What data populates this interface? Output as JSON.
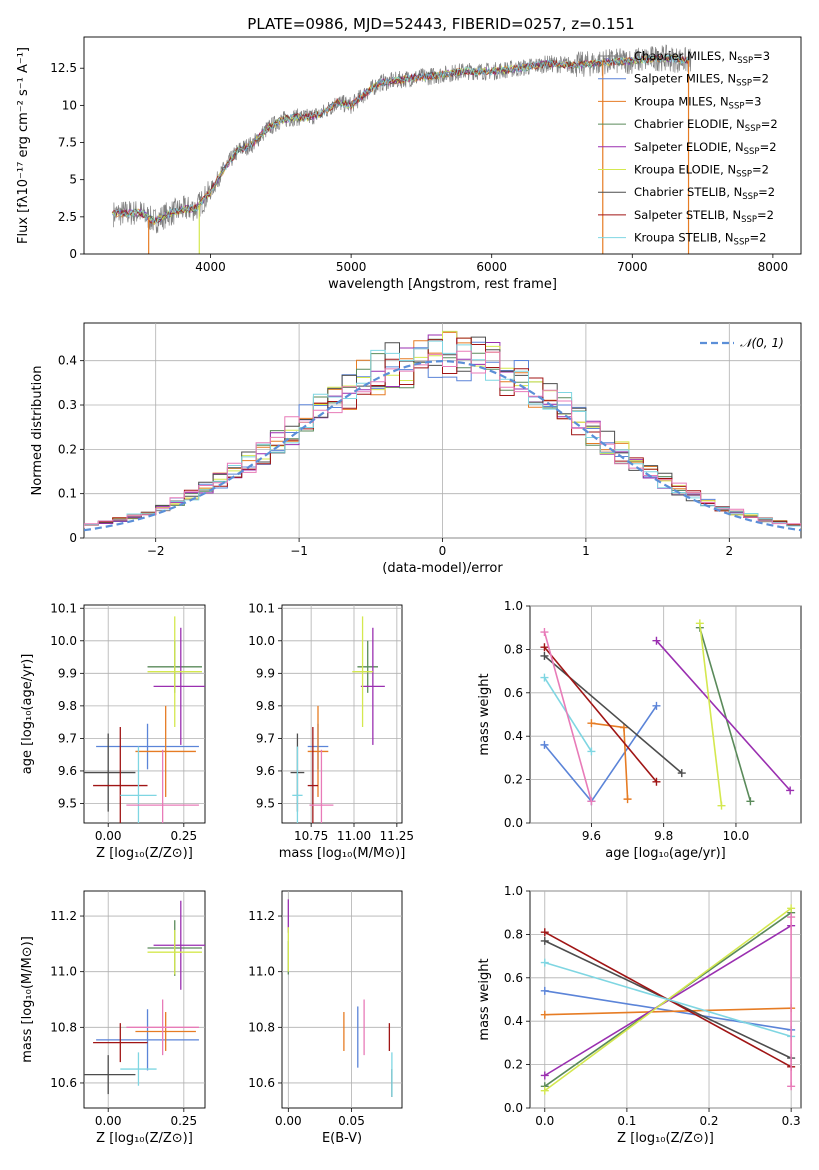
{
  "figure": {
    "title": "PLATE=0986, MJD=52443, FIBERID=0257, z=0.151"
  },
  "chart_data": [
    {
      "type": "line",
      "id": "spectrum",
      "title": "PLATE=0986, MJD=52443, FIBERID=0257, z=0.151",
      "xlabel": "wavelength [Angstrom, rest frame]",
      "ylabel": "Flux [fλ10⁻¹⁷ erg cm⁻² s⁻¹ A⁻¹]",
      "xlim": [
        3100,
        8200
      ],
      "ylim": [
        0,
        14.6
      ],
      "xticks": [
        4000,
        5000,
        6000,
        7000,
        8000
      ],
      "yticks": [
        0.0,
        2.5,
        5.0,
        7.5,
        10.0,
        12.5
      ],
      "grid": false,
      "legend_position": "top-right",
      "series": [
        {
          "name": "Chabrier MILES, N_SSP=3",
          "color": "#808080"
        },
        {
          "name": "Salpeter MILES, N_SSP=2",
          "color": "#5b84d8"
        },
        {
          "name": "Kroupa MILES, N_SSP=3",
          "color": "#e67c24"
        },
        {
          "name": "Chabrier ELODIE, N_SSP=2",
          "color": "#5a8a5a"
        },
        {
          "name": "Salpeter ELODIE, N_SSP=2",
          "color": "#9a2fb0"
        },
        {
          "name": "Kroupa ELODIE, N_SSP=2",
          "color": "#d4e84f"
        },
        {
          "name": "Chabrier STELIB, N_SSP=2",
          "color": "#4d4d4d"
        },
        {
          "name": "Salpeter STELIB, N_SSP=2",
          "color": "#a01515"
        },
        {
          "name": "Kroupa STELIB, N_SSP=2",
          "color": "#7fd6e2"
        }
      ],
      "continuum": {
        "x": [
          3300,
          3500,
          3600,
          3700,
          3800,
          3900,
          4000,
          4100,
          4200,
          4300,
          4400,
          4500,
          4600,
          4700,
          4800,
          4900,
          5000,
          5100,
          5200,
          5400,
          5600,
          5800,
          6000,
          6200,
          6400,
          6600,
          6800,
          7000,
          7200,
          7400
        ],
        "y": [
          2.7,
          2.8,
          2.2,
          2.7,
          3.0,
          3.1,
          4.2,
          5.8,
          7.0,
          7.4,
          8.4,
          9.0,
          9.2,
          9.2,
          9.5,
          10.2,
          10.0,
          10.8,
          11.5,
          11.8,
          12.0,
          12.3,
          12.3,
          12.5,
          12.8,
          12.7,
          12.9,
          13.0,
          13.2,
          13.0
        ]
      }
    },
    {
      "type": "line",
      "id": "residuals",
      "xlabel": "(data-model)/error",
      "ylabel": "Normed distribution",
      "xlim": [
        -2.5,
        2.5
      ],
      "ylim": [
        0,
        0.485
      ],
      "xticks": [
        -2,
        -1,
        0,
        1,
        2
      ],
      "yticks": [
        0.0,
        0.1,
        0.2,
        0.3,
        0.4
      ],
      "grid": true,
      "legend_position": "top-right",
      "legend": "𝒩(0, 1)",
      "gaussian": {
        "mean": 0,
        "sigma": 1
      },
      "bin_width": 0.1,
      "hist_colors": [
        "#5b84d8",
        "#e67c24",
        "#5a8a5a",
        "#9a2fb0",
        "#d4e84f",
        "#4d4d4d",
        "#a01515",
        "#7fd6e2",
        "#e87bb8"
      ]
    },
    {
      "type": "scatter",
      "id": "age-vs-Z",
      "xlabel": "Z [log₁₀(Z/Z⊙)]",
      "ylabel": "age  [log₁₀(age/yr)]",
      "xlim": [
        -0.08,
        0.32
      ],
      "ylim": [
        9.44,
        10.11
      ],
      "xticks": [
        "0.00",
        "0.25"
      ],
      "yticks": [
        "9.5",
        "9.6",
        "9.7",
        "9.8",
        "9.9",
        "10.0",
        "10.1"
      ],
      "grid": true,
      "errorbars": [
        {
          "color": "#5b84d8",
          "x": 0.13,
          "xerr": 0.17,
          "y": 9.675,
          "yerr": 0.07
        },
        {
          "color": "#e67c24",
          "x": 0.19,
          "xerr": 0.1,
          "y": 9.66,
          "yerr": 0.14
        },
        {
          "color": "#5a8a5a",
          "x": 0.22,
          "xerr": 0.09,
          "y": 9.92,
          "yerr": 0.08
        },
        {
          "color": "#9a2fb0",
          "x": 0.24,
          "xerr": 0.09,
          "y": 9.86,
          "yerr": 0.18
        },
        {
          "color": "#d4e84f",
          "x": 0.22,
          "xerr": 0.09,
          "y": 9.905,
          "yerr": 0.17
        },
        {
          "color": "#4d4d4d",
          "x": 0.0,
          "xerr": 0.09,
          "y": 9.595,
          "yerr": 0.12
        },
        {
          "color": "#a01515",
          "x": 0.04,
          "xerr": 0.09,
          "y": 9.555,
          "yerr": 0.18
        },
        {
          "color": "#7fd6e2",
          "x": 0.1,
          "xerr": 0.06,
          "y": 9.525,
          "yerr": 0.15
        },
        {
          "color": "#e87bb8",
          "x": 0.18,
          "xerr": 0.12,
          "y": 9.495,
          "yerr": 0.17
        }
      ]
    },
    {
      "type": "scatter",
      "id": "age-vs-mass",
      "xlabel": "mass [log₁₀(M/M⊙)]",
      "ylabel": "",
      "xlim": [
        10.58,
        11.28
      ],
      "ylim": [
        9.44,
        10.11
      ],
      "xticks": [
        "10.75",
        "11.00",
        "11.25"
      ],
      "yticks": [
        "9.5",
        "9.6",
        "9.7",
        "9.8",
        "9.9",
        "10.0",
        "10.1"
      ],
      "grid": true,
      "errorbars": [
        {
          "color": "#5b84d8",
          "x": 10.79,
          "xerr": 0.06,
          "y": 9.675,
          "yerr": 0.07
        },
        {
          "color": "#e67c24",
          "x": 10.79,
          "xerr": 0.06,
          "y": 9.66,
          "yerr": 0.14
        },
        {
          "color": "#5a8a5a",
          "x": 11.08,
          "xerr": 0.06,
          "y": 9.92,
          "yerr": 0.08
        },
        {
          "color": "#9a2fb0",
          "x": 11.11,
          "xerr": 0.07,
          "y": 9.86,
          "yerr": 0.18
        },
        {
          "color": "#d4e84f",
          "x": 11.05,
          "xerr": 0.06,
          "y": 9.905,
          "yerr": 0.17
        },
        {
          "color": "#4d4d4d",
          "x": 10.67,
          "xerr": 0.04,
          "y": 9.595,
          "yerr": 0.12
        },
        {
          "color": "#a01515",
          "x": 10.76,
          "xerr": 0.03,
          "y": 9.555,
          "yerr": 0.18
        },
        {
          "color": "#7fd6e2",
          "x": 10.67,
          "xerr": 0.03,
          "y": 9.525,
          "yerr": 0.15
        },
        {
          "color": "#e87bb8",
          "x": 10.81,
          "xerr": 0.07,
          "y": 9.495,
          "yerr": 0.17
        }
      ]
    },
    {
      "type": "line",
      "id": "mass-weight-vs-age",
      "xlabel": "age  [log₁₀(age/yr)]",
      "ylabel": "mass weight",
      "xlim": [
        9.43,
        10.18
      ],
      "ylim": [
        0.0,
        1.0
      ],
      "xticks": [
        "9.6",
        "9.8",
        "10.0"
      ],
      "yticks": [
        "0.0",
        "0.2",
        "0.4",
        "0.6",
        "0.8",
        "1.0"
      ],
      "grid": true,
      "series": [
        {
          "color": "#5b84d8",
          "x": [
            9.47,
            9.6,
            9.78
          ],
          "y": [
            0.36,
            0.1,
            0.54
          ]
        },
        {
          "color": "#e67c24",
          "x": [
            9.6,
            9.69,
            9.7
          ],
          "y": [
            0.46,
            0.44,
            0.11
          ]
        },
        {
          "color": "#5a8a5a",
          "x": [
            9.9,
            10.04
          ],
          "y": [
            0.9,
            0.1
          ]
        },
        {
          "color": "#9a2fb0",
          "x": [
            9.78,
            10.15
          ],
          "y": [
            0.84,
            0.15
          ]
        },
        {
          "color": "#d4e84f",
          "x": [
            9.9,
            9.96
          ],
          "y": [
            0.92,
            0.08
          ]
        },
        {
          "color": "#4d4d4d",
          "x": [
            9.47,
            9.85
          ],
          "y": [
            0.77,
            0.23
          ]
        },
        {
          "color": "#a01515",
          "x": [
            9.47,
            9.78
          ],
          "y": [
            0.81,
            0.19
          ]
        },
        {
          "color": "#7fd6e2",
          "x": [
            9.47,
            9.6
          ],
          "y": [
            0.67,
            0.33
          ]
        },
        {
          "color": "#e87bb8",
          "x": [
            9.47,
            9.6
          ],
          "y": [
            0.88,
            0.1
          ]
        }
      ]
    },
    {
      "type": "scatter",
      "id": "mass-vs-Z",
      "xlabel": "Z [log₁₀(Z/Z⊙)]",
      "ylabel": "mass [log₁₀(M/M⊙)]",
      "xlim": [
        -0.08,
        0.32
      ],
      "ylim": [
        10.51,
        11.29
      ],
      "xticks": [
        "0.00",
        "0.25"
      ],
      "yticks": [
        "10.6",
        "10.8",
        "11.0",
        "11.2"
      ],
      "grid": true,
      "errorbars": [
        {
          "color": "#5b84d8",
          "x": 0.13,
          "xerr": 0.17,
          "y": 10.755,
          "yerr": 0.11
        },
        {
          "color": "#e67c24",
          "x": 0.19,
          "xerr": 0.1,
          "y": 10.785,
          "yerr": 0.07
        },
        {
          "color": "#5a8a5a",
          "x": 0.22,
          "xerr": 0.09,
          "y": 11.085,
          "yerr": 0.1
        },
        {
          "color": "#9a2fb0",
          "x": 0.24,
          "xerr": 0.09,
          "y": 11.095,
          "yerr": 0.16
        },
        {
          "color": "#d4e84f",
          "x": 0.22,
          "xerr": 0.09,
          "y": 11.07,
          "yerr": 0.08
        },
        {
          "color": "#4d4d4d",
          "x": 0.0,
          "xerr": 0.09,
          "y": 10.63,
          "yerr": 0.07
        },
        {
          "color": "#a01515",
          "x": 0.04,
          "xerr": 0.09,
          "y": 10.745,
          "yerr": 0.07
        },
        {
          "color": "#7fd6e2",
          "x": 0.1,
          "xerr": 0.06,
          "y": 10.65,
          "yerr": 0.06
        },
        {
          "color": "#e87bb8",
          "x": 0.18,
          "xerr": 0.12,
          "y": 10.8,
          "yerr": 0.1
        }
      ]
    },
    {
      "type": "scatter",
      "id": "mass-vs-ebv",
      "xlabel": "E(B-V)",
      "ylabel": "",
      "xlim": [
        -0.005,
        0.09
      ],
      "ylim": [
        10.51,
        11.29
      ],
      "xticks": [
        "0.00",
        "0.05"
      ],
      "yticks": [
        "10.6",
        "10.8",
        "11.0",
        "11.2"
      ],
      "grid": true,
      "errorbars": [
        {
          "color": "#5b84d8",
          "x": 0.055,
          "xerr": 0,
          "y": 10.765,
          "yerr": 0.11
        },
        {
          "color": "#e67c24",
          "x": 0.044,
          "xerr": 0,
          "y": 10.785,
          "yerr": 0.07
        },
        {
          "color": "#5a8a5a",
          "x": 0.0,
          "xerr": 0,
          "y": 11.05,
          "yerr": 0.06
        },
        {
          "color": "#9a2fb0",
          "x": 0.0,
          "xerr": 0,
          "y": 11.2,
          "yerr": 0.06
        },
        {
          "color": "#d4e84f",
          "x": 0.0,
          "xerr": 0,
          "y": 11.08,
          "yerr": 0.08
        },
        {
          "color": "#4d4d4d",
          "x": 0.082,
          "xerr": 0,
          "y": 10.6,
          "yerr": 0.05
        },
        {
          "color": "#a01515",
          "x": 0.08,
          "xerr": 0,
          "y": 10.765,
          "yerr": 0.05
        },
        {
          "color": "#7fd6e2",
          "x": 0.082,
          "xerr": 0,
          "y": 10.63,
          "yerr": 0.08
        },
        {
          "color": "#e87bb8",
          "x": 0.06,
          "xerr": 0,
          "y": 10.8,
          "yerr": 0.1
        }
      ]
    },
    {
      "type": "line",
      "id": "mass-weight-vs-Z",
      "xlabel": "Z [log₁₀(Z/Z⊙)]",
      "ylabel": "mass weight",
      "xlim": [
        -0.018,
        0.312
      ],
      "ylim": [
        0.0,
        1.0
      ],
      "xticks": [
        "0.0",
        "0.1",
        "0.2",
        "0.3"
      ],
      "yticks": [
        "0.0",
        "0.2",
        "0.4",
        "0.6",
        "0.8",
        "1.0"
      ],
      "grid": true,
      "series": [
        {
          "color": "#5b84d8",
          "x": [
            0.0,
            0.3
          ],
          "y": [
            0.54,
            0.36
          ]
        },
        {
          "color": "#e67c24",
          "x": [
            0.0,
            0.3
          ],
          "y": [
            0.43,
            0.46
          ]
        },
        {
          "color": "#5a8a5a",
          "x": [
            0.0,
            0.3
          ],
          "y": [
            0.1,
            0.9
          ]
        },
        {
          "color": "#9a2fb0",
          "x": [
            0.0,
            0.3
          ],
          "y": [
            0.15,
            0.84
          ]
        },
        {
          "color": "#d4e84f",
          "x": [
            0.0,
            0.3
          ],
          "y": [
            0.08,
            0.92
          ]
        },
        {
          "color": "#4d4d4d",
          "x": [
            0.0,
            0.3
          ],
          "y": [
            0.77,
            0.23
          ]
        },
        {
          "color": "#a01515",
          "x": [
            0.0,
            0.3
          ],
          "y": [
            0.81,
            0.19
          ]
        },
        {
          "color": "#7fd6e2",
          "x": [
            0.0,
            0.3
          ],
          "y": [
            0.67,
            0.33
          ]
        },
        {
          "color": "#e87bb8",
          "x": [
            0.3,
            0.3
          ],
          "y": [
            0.88,
            0.1
          ]
        }
      ]
    }
  ]
}
